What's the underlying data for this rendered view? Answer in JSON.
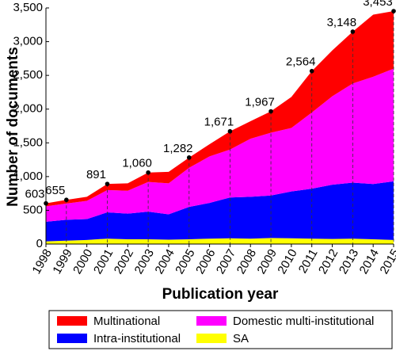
{
  "chart_data": {
    "type": "stacked_area",
    "x_label": "Publication year",
    "y_label": "Number of documents",
    "x": [
      1998,
      1999,
      2000,
      2001,
      2002,
      2003,
      2004,
      2005,
      2006,
      2007,
      2008,
      2009,
      2010,
      2011,
      2012,
      2013,
      2014,
      2015
    ],
    "xlim": [
      1998,
      2015
    ],
    "ylim": [
      0,
      3500
    ],
    "yticks": [
      0,
      500,
      {
        "value": 1000,
        "label": "1,000"
      },
      {
        "value": 1500,
        "label": "1,500"
      },
      {
        "value": 2000,
        "label": "2,000"
      },
      {
        "value": 2500,
        "label": "2,500"
      },
      {
        "value": 3000,
        "label": "3,000"
      },
      {
        "value": 3500,
        "label": "3,500"
      }
    ],
    "grid": false,
    "series": [
      {
        "name": "SA",
        "color": "#ffff00",
        "values": [
          40,
          50,
          60,
          80,
          70,
          70,
          65,
          70,
          80,
          85,
          80,
          90,
          85,
          80,
          75,
          80,
          70,
          60
        ]
      },
      {
        "name": "Intra-institutional",
        "color": "#0000ff",
        "values": [
          290,
          310,
          310,
          390,
          380,
          410,
          375,
          480,
          530,
          605,
          620,
          630,
          695,
          740,
          805,
          830,
          820,
          870
        ]
      },
      {
        "name": "Domestic multi-institutional",
        "color": "#ff00ff",
        "values": [
          230,
          240,
          270,
          330,
          340,
          440,
          460,
          580,
          690,
          710,
          860,
          930,
          940,
          1130,
          1310,
          1470,
          1590,
          1670
        ]
      },
      {
        "name": "Multinational",
        "color": "#ff0000",
        "values": [
          43,
          55,
          60,
          91,
          110,
          140,
          170,
          152,
          180,
          271,
          260,
          317,
          460,
          614,
          680,
          768,
          920,
          853
        ]
      }
    ],
    "total_labels": [
      {
        "x": 1998,
        "value": 603,
        "label": "603"
      },
      {
        "x": 1999,
        "value": 655,
        "label": "655"
      },
      {
        "x": 2001,
        "value": 891,
        "label": "891"
      },
      {
        "x": 2003,
        "value": 1060,
        "label": "1,060"
      },
      {
        "x": 2005,
        "value": 1282,
        "label": "1,282"
      },
      {
        "x": 2007,
        "value": 1671,
        "label": "1,671"
      },
      {
        "x": 2009,
        "value": 1967,
        "label": "1,967"
      },
      {
        "x": 2011,
        "value": 2564,
        "label": "2,564"
      },
      {
        "x": 2013,
        "value": 3148,
        "label": "3,148"
      },
      {
        "x": 2015,
        "value": 3453,
        "label": "3,453"
      }
    ]
  }
}
